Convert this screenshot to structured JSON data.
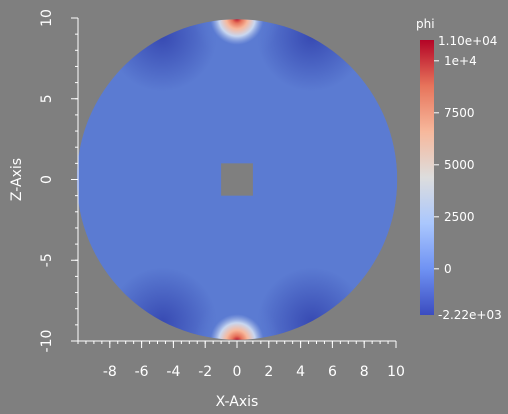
{
  "chart_data": {
    "type": "heatmap",
    "title": "",
    "xlabel": "X-Axis",
    "ylabel": "Z-Axis",
    "xlim": [
      -10,
      10
    ],
    "ylim": [
      -10,
      10
    ],
    "x_ticks": [
      "-8",
      "-6",
      "-4",
      "-2",
      "0",
      "2",
      "4",
      "6",
      "8",
      "10"
    ],
    "y_ticks": [
      "-10",
      "-5",
      "0",
      "5",
      "10"
    ],
    "domain": {
      "shape": "disk",
      "center": [
        0,
        0
      ],
      "radius": 10,
      "hole": {
        "shape": "square",
        "x_range": [
          -1,
          1
        ],
        "z_range": [
          -1,
          1
        ]
      }
    },
    "field": {
      "name": "phi",
      "background_value": 0,
      "hotspots": [
        {
          "x": 0,
          "z": 10,
          "value": 11000
        },
        {
          "x": 0,
          "z": -10,
          "value": 11000
        }
      ],
      "minimum": {
        "value": -2220,
        "locations": "rim next to the hotspots"
      }
    },
    "colorbar": {
      "title": "phi",
      "min": -2220,
      "max": 11000,
      "min_label": "-2.22e+03",
      "max_label": "1.10e+04",
      "ticks": [
        {
          "value": 0,
          "label": "0"
        },
        {
          "value": 2500,
          "label": "2500"
        },
        {
          "value": 5000,
          "label": "5000"
        },
        {
          "value": 7500,
          "label": "7500"
        },
        {
          "value": 10000,
          "label": "1e+4"
        }
      ],
      "colormap": "cool-to-warm",
      "colors": [
        "#3b4cc0",
        "#6f92f3",
        "#aac7fd",
        "#dddddd",
        "#f7b89c",
        "#e7745b",
        "#b40426"
      ]
    },
    "grid": false,
    "legend_position": "right"
  }
}
